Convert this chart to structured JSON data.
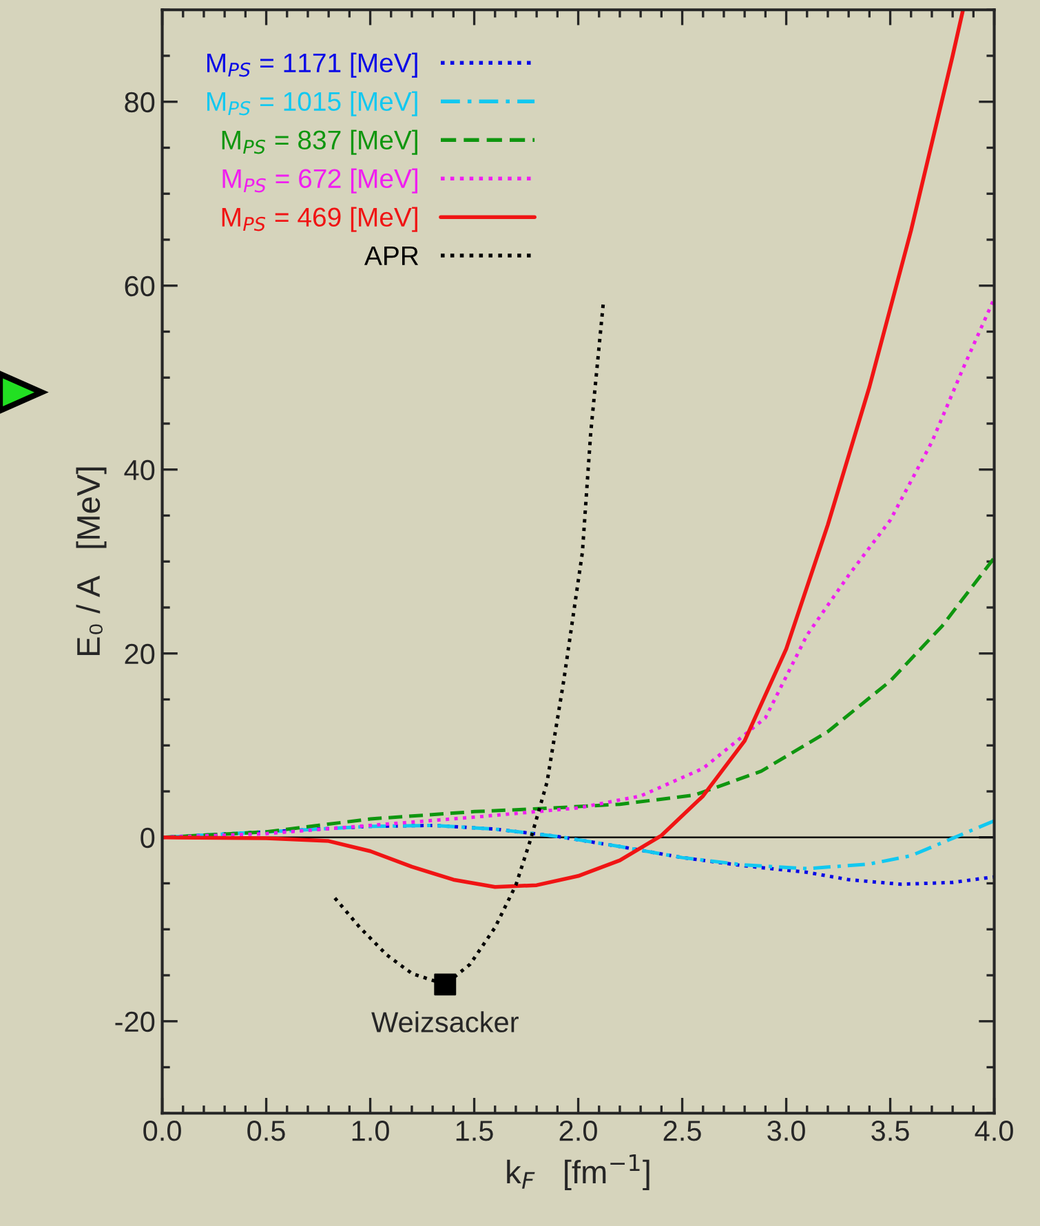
{
  "chart_data": {
    "type": "line",
    "xlabel": "k$_{F}$   [fm$^{−1}$]",
    "ylabel": "E₀ / A   [MeV]",
    "xlim": [
      0,
      4
    ],
    "ylim": [
      -30,
      90
    ],
    "xticks": [
      {
        "value": 0,
        "label": "0.0"
      },
      {
        "value": 0.5,
        "label": "0.5"
      },
      {
        "value": 1,
        "label": "1.0"
      },
      {
        "value": 1.5,
        "label": "1.5"
      },
      {
        "value": 2,
        "label": "2.0"
      },
      {
        "value": 2.5,
        "label": "2.5"
      },
      {
        "value": 3,
        "label": "3.0"
      },
      {
        "value": 3.5,
        "label": "3.5"
      },
      {
        "value": 4,
        "label": "4.0"
      }
    ],
    "yticks": [
      -20,
      0,
      20,
      40,
      60,
      80
    ],
    "grid": false,
    "legend": "top left",
    "ref_lines": [
      {
        "axis": "y",
        "value": 0,
        "color": "#000000",
        "line_style": "solid"
      }
    ],
    "annotations": [
      {
        "text": "Weizsacker",
        "x": 1.36,
        "y": -16
      }
    ],
    "series": [
      {
        "name": "M$_{PS}$ = 1171 [MeV]",
        "color": "#0a0ae6",
        "line_style": "dotted",
        "x": [
          0,
          0.5,
          1.0,
          1.3,
          1.6,
          1.9,
          2.2,
          2.5,
          2.8,
          3.1,
          3.3,
          3.55,
          3.8,
          4.0
        ],
        "values": [
          0,
          0.6,
          1.2,
          1.3,
          0.9,
          0.1,
          -1.0,
          -2.2,
          -3.1,
          -3.8,
          -4.6,
          -5.1,
          -4.9,
          -4.3
        ]
      },
      {
        "name": "M$_{PS}$ = 1015 [MeV]",
        "color": "#12c8f0",
        "line_style": "dashdot",
        "x": [
          0,
          0.5,
          1.0,
          1.3,
          1.6,
          1.9,
          2.2,
          2.5,
          2.8,
          3.1,
          3.4,
          3.6,
          3.8,
          4.0
        ],
        "values": [
          0,
          0.6,
          1.2,
          1.3,
          0.9,
          0.1,
          -1.0,
          -2.2,
          -3.0,
          -3.4,
          -2.9,
          -2.0,
          -0.1,
          1.8
        ]
      },
      {
        "name": "M$_{PS}$ = 837 [MeV]",
        "color": "#0f960f",
        "line_style": "dashed",
        "x": [
          0,
          0.5,
          1.0,
          1.5,
          1.8,
          2.2,
          2.56,
          2.88,
          3.2,
          3.5,
          3.75,
          4.0
        ],
        "values": [
          0,
          0.6,
          2.0,
          2.8,
          3.1,
          3.6,
          4.6,
          7.2,
          11.5,
          17,
          23,
          30.4
        ]
      },
      {
        "name": "M$_{PS}$ = 672 [MeV]",
        "color": "#f01ef0",
        "line_style": "dotted",
        "x": [
          0,
          0.5,
          1.0,
          1.5,
          2.0,
          2.3,
          2.6,
          2.9,
          3.1,
          3.3,
          3.5,
          3.7,
          3.85,
          4.0
        ],
        "values": [
          0,
          0.4,
          1.3,
          2.2,
          3.2,
          4.5,
          7.5,
          13,
          22,
          28.5,
          34.5,
          43,
          51,
          58.6
        ]
      },
      {
        "name": "M$_{PS}$ = 469 [MeV]",
        "color": "#f01414",
        "line_style": "solid",
        "x": [
          0,
          0.5,
          0.8,
          1.0,
          1.2,
          1.4,
          1.6,
          1.8,
          2.0,
          2.2,
          2.4,
          2.6,
          2.8,
          3.0,
          3.2,
          3.4,
          3.6,
          3.8,
          3.85
        ],
        "values": [
          0,
          -0.1,
          -0.4,
          -1.5,
          -3.2,
          -4.6,
          -5.4,
          -5.2,
          -4.2,
          -2.5,
          0.2,
          4.5,
          10.5,
          20.5,
          34,
          49,
          66,
          85,
          90
        ]
      },
      {
        "name": "APR",
        "color": "#000000",
        "line_style": "dotted",
        "x": [
          0.83,
          0.95,
          1.08,
          1.2,
          1.36,
          1.48,
          1.6,
          1.7,
          1.77,
          1.85,
          1.93,
          2.02,
          2.06,
          2.12
        ],
        "values": [
          -6.6,
          -9.8,
          -12.8,
          -14.8,
          -16.0,
          -13.8,
          -9.8,
          -5.2,
          -0.3,
          6,
          17,
          31,
          44,
          58
        ]
      },
      {
        "type": "scatter",
        "marker": "square",
        "color": "#000000",
        "x": [
          1.36
        ],
        "values": [
          -16.0
        ]
      }
    ]
  }
}
